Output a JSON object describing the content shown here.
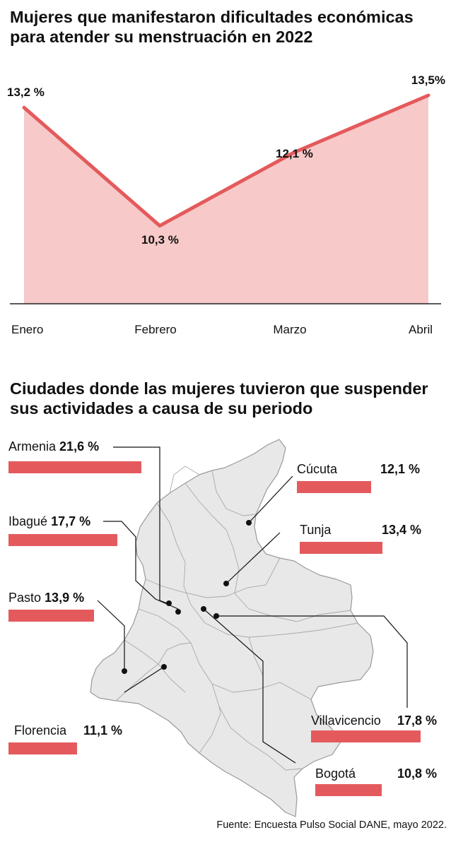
{
  "chart_data": [
    {
      "type": "area",
      "title": "Mujeres que manifestaron dificultades económicas para atender su menstruación en 2022",
      "categories": [
        "Enero",
        "Febrero",
        "Marzo",
        "Abril"
      ],
      "values": [
        13.2,
        10.3,
        12.1,
        13.5
      ],
      "value_labels": [
        "13,2 %",
        "10,3 %",
        "12,1 %",
        "13,5%"
      ],
      "unit": "%",
      "colors": {
        "line": "#e45a5c",
        "fill": "#f7c9c9",
        "axis": "#222222"
      },
      "grid": false,
      "legend": "none"
    },
    {
      "type": "bar",
      "title": "Ciudades donde las mujeres tuvieron que suspender sus actividades a causa de su periodo",
      "categories": [
        "Armenia",
        "Ibagué",
        "Pasto",
        "Florencia",
        "Cúcuta",
        "Tunja",
        "Villavicencio",
        "Bogotá"
      ],
      "values": [
        21.6,
        17.7,
        13.9,
        11.1,
        12.1,
        13.4,
        17.8,
        10.8
      ],
      "value_labels": [
        "21,6 %",
        "17,7 %",
        "13,9 %",
        "11,1 %",
        "12,1 %",
        "13,4 %",
        "17,8 %",
        "10,8 %"
      ],
      "unit": "%",
      "colors": {
        "bar": "#e45a5c",
        "map_fill": "#e8e8e8",
        "map_border": "#9a9a9a"
      },
      "legend": "none"
    }
  ],
  "source": "Fuente: Encuesta Pulso Social DANE, mayo 2022."
}
